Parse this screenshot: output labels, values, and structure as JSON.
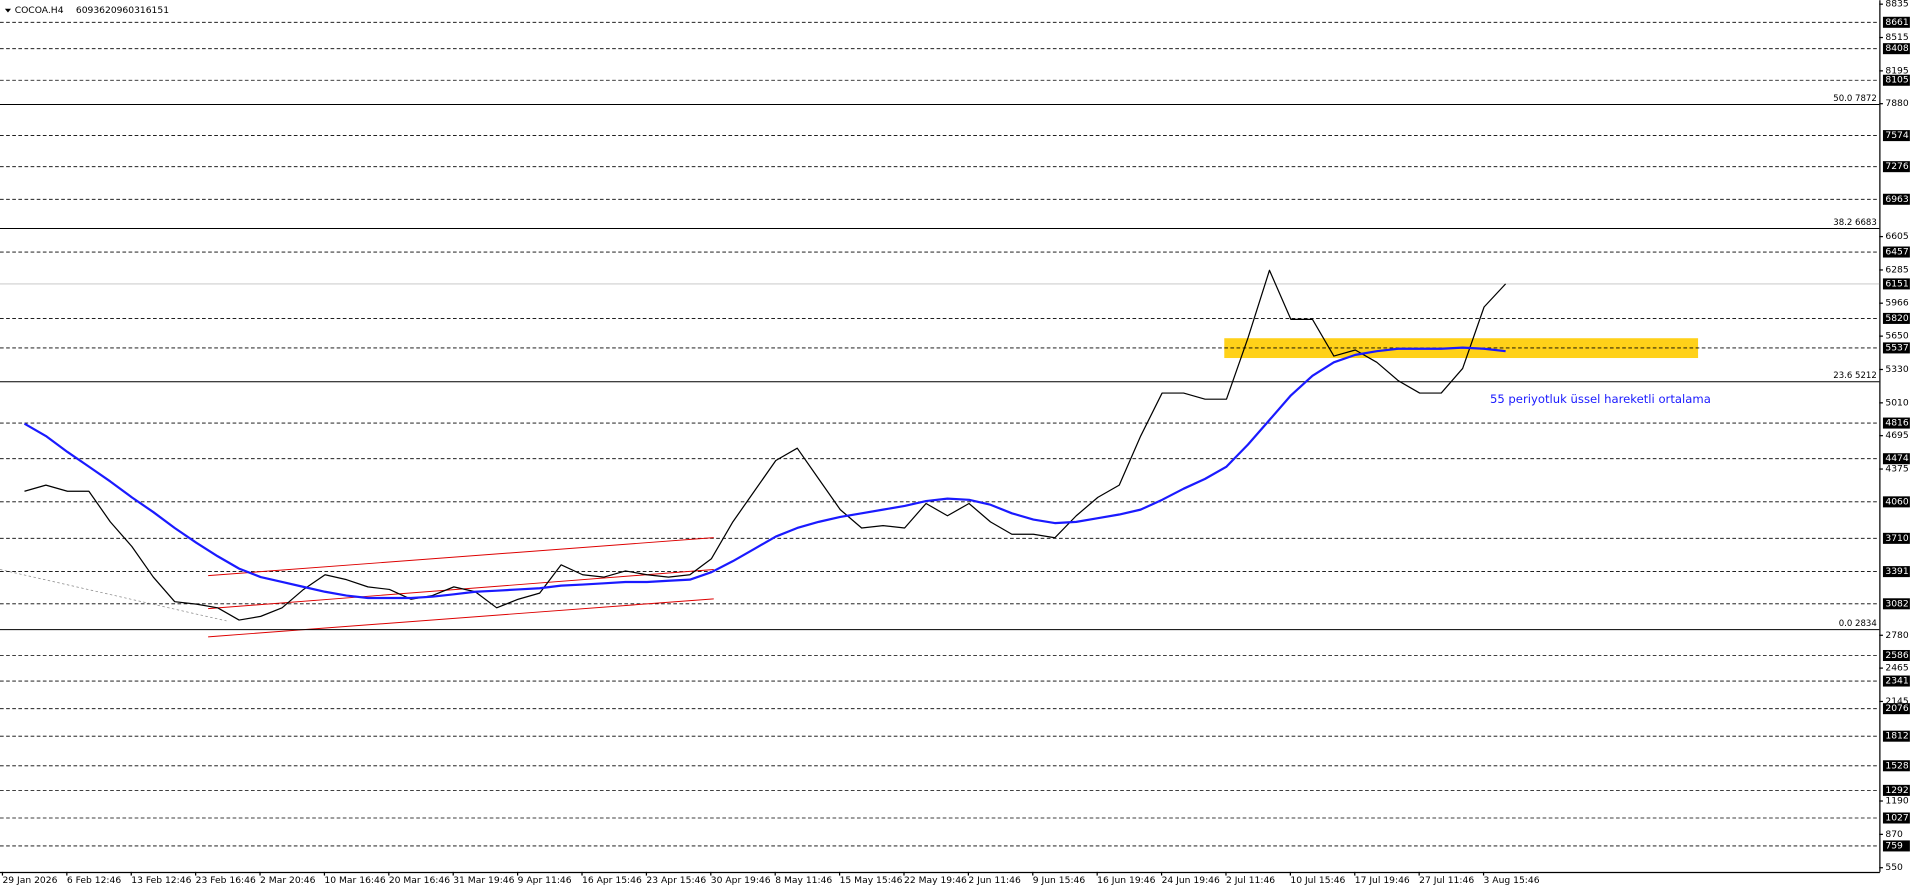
{
  "chart_data": {
    "type": "line",
    "title": "COCOA.H4",
    "ohlc": [
      6093,
      6209,
      6031,
      6151
    ],
    "categories": [
      "29 Jan 2026",
      null,
      null,
      "6 Feb 12:46",
      null,
      null,
      "13 Feb 12:46",
      null,
      null,
      "23 Feb 16:46",
      null,
      null,
      "2 Mar 20:46",
      null,
      null,
      "10 Mar 16:46",
      null,
      null,
      "20 Mar 16:46",
      null,
      null,
      "31 Mar 19:46",
      null,
      null,
      "9 Apr 11:46",
      null,
      null,
      "16 Apr 15:46",
      null,
      null,
      "23 Apr 15:46",
      null,
      null,
      "30 Apr 19:46",
      null,
      null,
      "8 May 11:46",
      null,
      null,
      "15 May 15:46",
      null,
      null,
      "22 May 19:46",
      null,
      null,
      "2 Jun 11:46",
      null,
      null,
      "9 Jun 15:46",
      null,
      null,
      "16 Jun 19:46",
      null,
      null,
      "24 Jun 19:46",
      null,
      null,
      "2 Jul 11:46",
      null,
      null,
      "10 Jul 15:46",
      null,
      null,
      "17 Jul 19:46",
      null,
      null,
      "27 Jul 11:46",
      null,
      null,
      "3 Aug 15:46"
    ],
    "series": [
      {
        "color": "#000000",
        "values": [
          4162,
          4221,
          4162,
          4162,
          3868,
          3632,
          3338,
          3102,
          3079,
          3043,
          2926,
          2961,
          3043,
          3220,
          3361,
          3314,
          3244,
          3220,
          3126,
          3161,
          3244,
          3197,
          3043,
          3126,
          3185,
          3456,
          3361,
          3338,
          3397,
          3361,
          3338,
          3361,
          3515,
          3868,
          4162,
          4457,
          4575,
          4280,
          3986,
          3809,
          3832,
          3809,
          4044,
          3927,
          4044,
          3868,
          3750,
          3750,
          3715,
          3927,
          4103,
          4221,
          4692,
          5104,
          5104,
          5045,
          5045,
          5634,
          6282,
          5811,
          5811,
          5458,
          5517,
          5399,
          5222,
          5104,
          5104,
          5340,
          5929,
          6151
        ]
      },
      {
        "name": "55 periyotluk üssel hareketli ortalama",
        "color": "#1a1aff",
        "values": [
          4810,
          4692,
          4539,
          4398,
          4256,
          4103,
          3962,
          3809,
          3668,
          3538,
          3420,
          3338,
          3291,
          3244,
          3197,
          3161,
          3138,
          3138,
          3138,
          3150,
          3173,
          3197,
          3208,
          3220,
          3232,
          3256,
          3267,
          3279,
          3291,
          3291,
          3303,
          3314,
          3385,
          3491,
          3609,
          3727,
          3809,
          3868,
          3915,
          3950,
          3986,
          4021,
          4068,
          4091,
          4079,
          4033,
          3950,
          3891,
          3856,
          3868,
          3903,
          3939,
          3986,
          4079,
          4186,
          4280,
          4398,
          4610,
          4845,
          5081,
          5269,
          5399,
          5470,
          5505,
          5529,
          5529,
          5529,
          5540,
          5529,
          5505
        ]
      }
    ],
    "ylim": [
      510,
      8873
    ],
    "yticks": [
      8835,
      8515,
      8195,
      7880,
      6605,
      6285,
      5966,
      5650,
      5330,
      5010,
      4695,
      4375,
      2780,
      2465,
      2145,
      1190,
      870,
      550
    ],
    "levels": [
      8661,
      8408,
      8105,
      7574,
      7276,
      6963,
      6457,
      5820,
      5537,
      4816,
      4474,
      4060,
      3710,
      3391,
      3082,
      2586,
      2341,
      2076,
      1812,
      1528,
      1292,
      1027,
      759
    ],
    "fibonacci": [
      {
        "ratio": "50.0",
        "value": 7872
      },
      {
        "ratio": "38.2",
        "value": 6683
      },
      {
        "ratio": "23.6",
        "value": 5212
      },
      {
        "ratio": "0.0",
        "value": 2834
      }
    ],
    "zone": [
      5440,
      5630
    ],
    "zone_color": "#ffcc00"
  }
}
